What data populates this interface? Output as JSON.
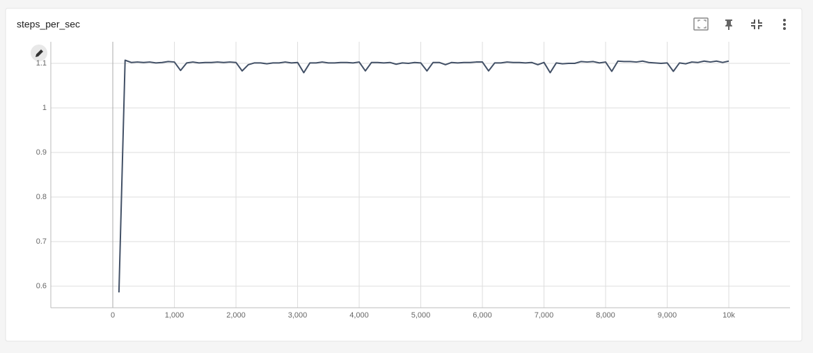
{
  "chart_data": {
    "type": "line",
    "title": "steps_per_sec",
    "x": [
      100,
      200,
      300,
      400,
      500,
      600,
      700,
      800,
      900,
      1000,
      1100,
      1200,
      1300,
      1400,
      1500,
      1600,
      1700,
      1800,
      1900,
      2000,
      2100,
      2200,
      2300,
      2400,
      2500,
      2600,
      2700,
      2800,
      2900,
      3000,
      3100,
      3200,
      3300,
      3400,
      3500,
      3600,
      3700,
      3800,
      3900,
      4000,
      4100,
      4200,
      4300,
      4400,
      4500,
      4600,
      4700,
      4800,
      4900,
      5000,
      5100,
      5200,
      5300,
      5400,
      5500,
      5600,
      5700,
      5800,
      5900,
      6000,
      6100,
      6200,
      6300,
      6400,
      6500,
      6600,
      6700,
      6800,
      6900,
      7000,
      7100,
      7200,
      7300,
      7400,
      7500,
      7600,
      7700,
      7800,
      7900,
      8000,
      8100,
      8200,
      8300,
      8400,
      8500,
      8600,
      8700,
      8800,
      8900,
      9000,
      9100,
      9200,
      9300,
      9400,
      9500,
      9600,
      9700,
      9800,
      9900,
      10000
    ],
    "series": [
      {
        "color": "#425066",
        "values": [
          0.586,
          1.107,
          1.102,
          1.103,
          1.102,
          1.103,
          1.101,
          1.102,
          1.104,
          1.103,
          1.084,
          1.101,
          1.103,
          1.101,
          1.102,
          1.102,
          1.103,
          1.102,
          1.103,
          1.102,
          1.083,
          1.097,
          1.101,
          1.101,
          1.099,
          1.101,
          1.101,
          1.103,
          1.101,
          1.102,
          1.079,
          1.101,
          1.101,
          1.103,
          1.101,
          1.101,
          1.102,
          1.102,
          1.101,
          1.103,
          1.083,
          1.102,
          1.102,
          1.101,
          1.102,
          1.098,
          1.101,
          1.1,
          1.102,
          1.101,
          1.083,
          1.102,
          1.102,
          1.097,
          1.102,
          1.101,
          1.102,
          1.102,
          1.103,
          1.103,
          1.083,
          1.101,
          1.101,
          1.103,
          1.102,
          1.102,
          1.101,
          1.102,
          1.097,
          1.102,
          1.079,
          1.101,
          1.099,
          1.1,
          1.1,
          1.104,
          1.103,
          1.104,
          1.101,
          1.103,
          1.082,
          1.105,
          1.104,
          1.104,
          1.103,
          1.105,
          1.102,
          1.101,
          1.1,
          1.101,
          1.082,
          1.101,
          1.099,
          1.103,
          1.102,
          1.105,
          1.103,
          1.105,
          1.102,
          1.105
        ]
      }
    ],
    "xlim": [
      -1006,
      10994
    ],
    "ylim": [
      0.5516,
      1.1484
    ],
    "xticks": [
      0,
      {
        "value": 1000,
        "label": "1,000"
      },
      {
        "value": 2000,
        "label": "2,000"
      },
      {
        "value": 3000,
        "label": "3,000"
      },
      {
        "value": 4000,
        "label": "4,000"
      },
      {
        "value": 5000,
        "label": "5,000"
      },
      {
        "value": 6000,
        "label": "6,000"
      },
      {
        "value": 7000,
        "label": "7,000"
      },
      {
        "value": 8000,
        "label": "8,000"
      },
      {
        "value": 9000,
        "label": "9,000"
      },
      {
        "value": 10000,
        "label": "10k"
      }
    ],
    "yticks": [
      0.6,
      0.7,
      0.8,
      0.9,
      1,
      1.1
    ],
    "grid": true
  }
}
